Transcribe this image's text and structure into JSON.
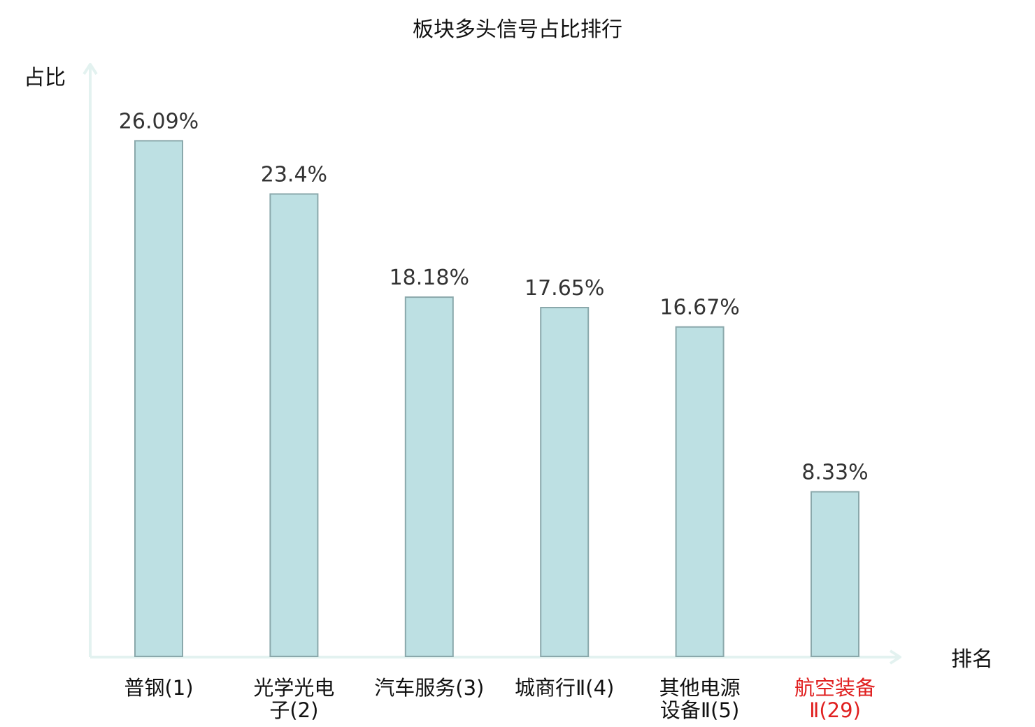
{
  "chart_data": {
    "type": "bar",
    "title": "板块多头信号占比排行",
    "ylabel": "占比",
    "xlabel": "排名",
    "categories": [
      [
        "普钢(1)"
      ],
      [
        "光学光电",
        "子(2)"
      ],
      [
        "汽车服务(3)"
      ],
      [
        "城商行Ⅱ(4)"
      ],
      [
        "其他电源",
        "设备Ⅱ(5)"
      ],
      [
        "航空装备",
        "Ⅱ(29)"
      ]
    ],
    "values": [
      26.09,
      23.4,
      18.18,
      17.65,
      16.67,
      8.33
    ],
    "value_labels": [
      "26.09%",
      "23.4%",
      "18.18%",
      "17.65%",
      "16.67%",
      "8.33%"
    ],
    "highlight_index": 5,
    "ylim": [
      0,
      30
    ],
    "grid": false,
    "colors": {
      "bar_fill": "#bde0e3",
      "bar_stroke": "#8aa8ab",
      "axis": "#e3f2f0",
      "highlight_text": "#e02020",
      "text": "#111111",
      "value_text": "#333333"
    }
  }
}
